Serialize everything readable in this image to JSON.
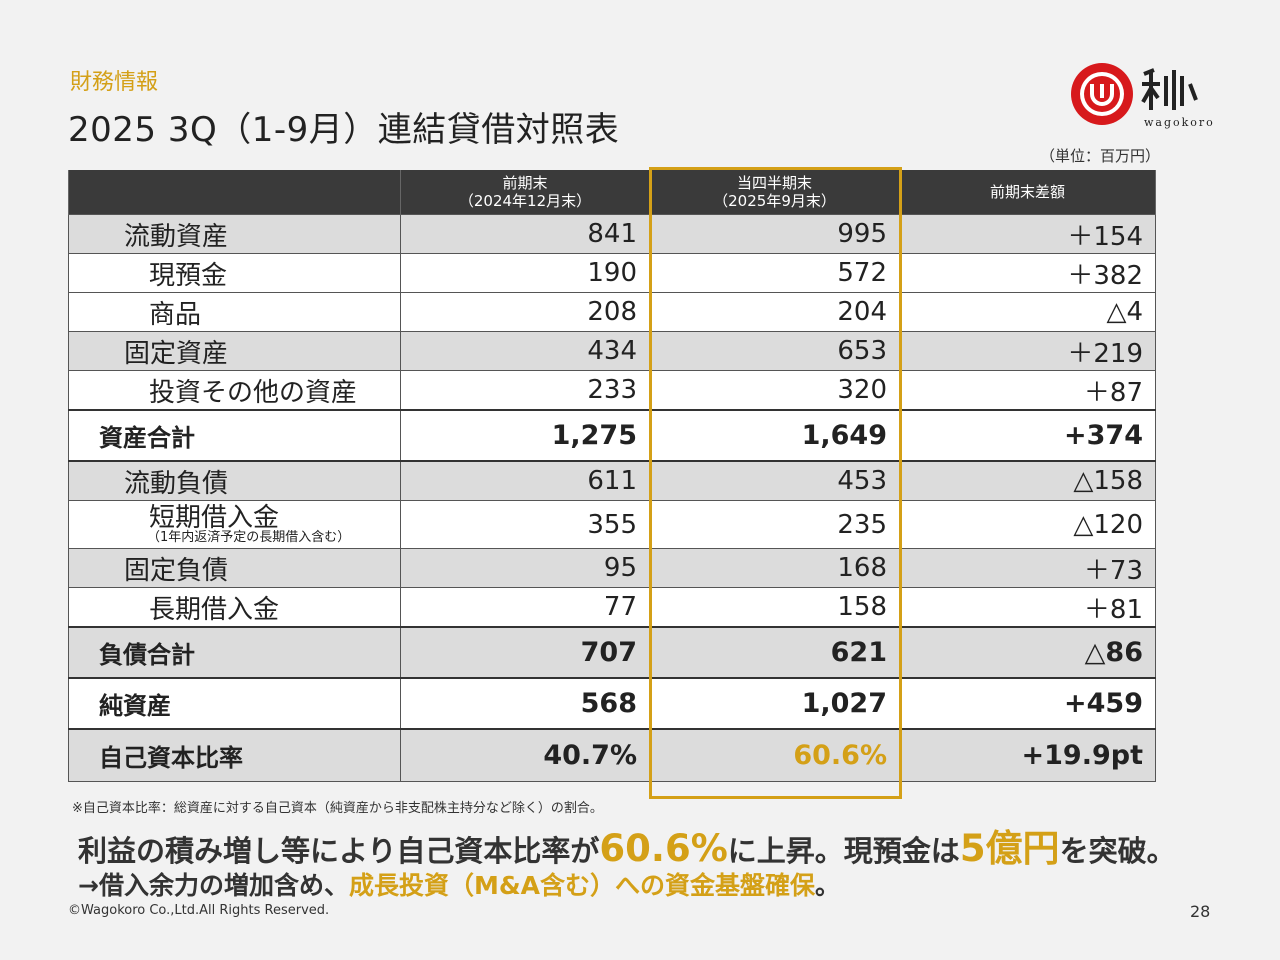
{
  "header": {
    "section": "財務情報",
    "title": "2025 3Q（1-9月）連結貸借対照表",
    "logo_text": "wagokoro",
    "unit": "（単位：百万円）"
  },
  "table": {
    "headers": {
      "prev_line1": "前期末",
      "prev_line2": "（2024年12月末）",
      "curr_line1": "当四半期末",
      "curr_line2": "（2025年9月末）",
      "diff": "前期末差額"
    },
    "rows": [
      {
        "label": "流動資産",
        "prev": "841",
        "curr": "995",
        "diff": "＋154"
      },
      {
        "label": "現預金",
        "prev": "190",
        "curr": "572",
        "diff": "＋382"
      },
      {
        "label": "商品",
        "prev": "208",
        "curr": "204",
        "diff": "△4"
      },
      {
        "label": "固定資産",
        "prev": "434",
        "curr": "653",
        "diff": "＋219"
      },
      {
        "label": "投資その他の資産",
        "prev": "233",
        "curr": "320",
        "diff": "＋87"
      },
      {
        "label": "資産合計",
        "prev": "1,275",
        "curr": "1,649",
        "diff": "+374"
      },
      {
        "label": "流動負債",
        "prev": "611",
        "curr": "453",
        "diff": "△158"
      },
      {
        "label": "短期借入金",
        "sublabel": "（1年内返済予定の長期借入含む）",
        "prev": "355",
        "curr": "235",
        "diff": "△120"
      },
      {
        "label": "固定負債",
        "prev": "95",
        "curr": "168",
        "diff": "＋73"
      },
      {
        "label": "長期借入金",
        "prev": "77",
        "curr": "158",
        "diff": "＋81"
      },
      {
        "label": "負債合計",
        "prev": "707",
        "curr": "621",
        "diff": "△86"
      },
      {
        "label": "純資産",
        "prev": "568",
        "curr": "1,027",
        "diff": "+459"
      },
      {
        "label": "自己資本比率",
        "prev": "40.7%",
        "curr": "60.6%",
        "diff": "+19.9pt"
      }
    ]
  },
  "footnote": "※自己資本比率：総資産に対する自己資本（純資産から非支配株主持分など除く）の割合。",
  "message": {
    "line1_a": "利益の積み増し等により自己資本比率が",
    "line1_b": "60.6%",
    "line1_c": "に上昇。現預金は",
    "line1_d": "5億円",
    "line1_e": "を突破。",
    "line2_a": "→借入余力の増加含め、",
    "line2_b": "成長投資（M&A含む）への資金基盤確保",
    "line2_c": "。"
  },
  "footer": {
    "copyright": "©Wagokoro Co.,Ltd.All Rights Reserved.",
    "page": "28"
  },
  "colors": {
    "accent": "#d4a017",
    "header_bg": "#3a3a3a",
    "logo_red": "#d7191c"
  }
}
